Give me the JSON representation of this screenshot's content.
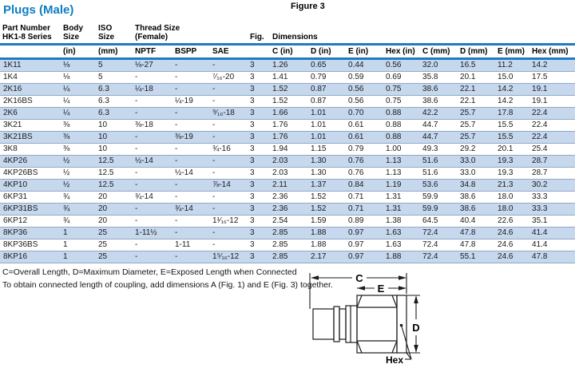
{
  "page": {
    "title": "Plugs (Male)",
    "figure_label": "Figure 3"
  },
  "colors": {
    "title_blue": "#0d7dc4",
    "rule_blue": "#1d7bc4",
    "row_stripe": "#c5d8ee",
    "row_separator": "#93a9c1"
  },
  "table": {
    "group_headers": [
      {
        "label": "Part Number\nHK1-8 Series"
      },
      {
        "label": "Body\nSize"
      },
      {
        "label": "ISO\nSize"
      },
      {
        "label": "Thread Size\n(Female)"
      },
      {
        "label": "Fig."
      },
      {
        "label": "Dimensions"
      }
    ],
    "sub_headers": [
      "",
      "(in)",
      "(mm)",
      "NPTF",
      "BSPP",
      "SAE",
      "",
      "C (in)",
      "D (in)",
      "E (in)",
      "Hex (in)",
      "C (mm)",
      "D (mm)",
      "E (mm)",
      "Hex (mm)"
    ],
    "rows": [
      [
        "1K11",
        "⅛",
        "5",
        "⅛-27",
        "-",
        "-",
        "3",
        "1.26",
        "0.65",
        "0.44",
        "0.56",
        "32.0",
        "16.5",
        "11.2",
        "14.2"
      ],
      [
        "1K4",
        "⅛",
        "5",
        "-",
        "-",
        "⁷⁄₁₆-20",
        "3",
        "1.41",
        "0.79",
        "0.59",
        "0.69",
        "35.8",
        "20.1",
        "15.0",
        "17.5"
      ],
      [
        "2K16",
        "¼",
        "6.3",
        "¼-18",
        "-",
        "-",
        "3",
        "1.52",
        "0.87",
        "0.56",
        "0.75",
        "38.6",
        "22.1",
        "14.2",
        "19.1"
      ],
      [
        "2K16BS",
        "¼",
        "6.3",
        "-",
        "¼-19",
        "-",
        "3",
        "1.52",
        "0.87",
        "0.56",
        "0.75",
        "38.6",
        "22.1",
        "14.2",
        "19.1"
      ],
      [
        "2K6",
        "¼",
        "6.3",
        "-",
        "-",
        "⁹⁄₁₆-18",
        "3",
        "1.66",
        "1.01",
        "0.70",
        "0.88",
        "42.2",
        "25.7",
        "17.8",
        "22.4"
      ],
      [
        "3K21",
        "⅜",
        "10",
        "⅜-18",
        "-",
        "-",
        "3",
        "1.76",
        "1.01",
        "0.61",
        "0.88",
        "44.7",
        "25.7",
        "15.5",
        "22.4"
      ],
      [
        "3K21BS",
        "⅜",
        "10",
        "-",
        "⅜-19",
        "-",
        "3",
        "1.76",
        "1.01",
        "0.61",
        "0.88",
        "44.7",
        "25.7",
        "15.5",
        "22.4"
      ],
      [
        "3K8",
        "⅜",
        "10",
        "-",
        "-",
        "¾-16",
        "3",
        "1.94",
        "1.15",
        "0.79",
        "1.00",
        "49.3",
        "29.2",
        "20.1",
        "25.4"
      ],
      [
        "4KP26",
        "½",
        "12.5",
        "½-14",
        "-",
        "-",
        "3",
        "2.03",
        "1.30",
        "0.76",
        "1.13",
        "51.6",
        "33.0",
        "19.3",
        "28.7"
      ],
      [
        "4KP26BS",
        "½",
        "12.5",
        "-",
        "½-14",
        "-",
        "3",
        "2.03",
        "1.30",
        "0.76",
        "1.13",
        "51.6",
        "33.0",
        "19.3",
        "28.7"
      ],
      [
        "4KP10",
        "½",
        "12.5",
        "-",
        "-",
        "⅞-14",
        "3",
        "2.11",
        "1.37",
        "0.84",
        "1.19",
        "53.6",
        "34.8",
        "21.3",
        "30.2"
      ],
      [
        "6KP31",
        "¾",
        "20",
        "¾-14",
        "-",
        "-",
        "3",
        "2.36",
        "1.52",
        "0.71",
        "1.31",
        "59.9",
        "38.6",
        "18.0",
        "33.3"
      ],
      [
        "6KP31BS",
        "¾",
        "20",
        "-",
        "¾-14",
        "-",
        "3",
        "2.36",
        "1.52",
        "0.71",
        "1.31",
        "59.9",
        "38.6",
        "18.0",
        "33.3"
      ],
      [
        "6KP12",
        "¾",
        "20",
        "-",
        "-",
        "1¹⁄₁₆-12",
        "3",
        "2.54",
        "1.59",
        "0.89",
        "1.38",
        "64.5",
        "40.4",
        "22.6",
        "35.1"
      ],
      [
        "8KP36",
        "1",
        "25",
        "1-11½",
        "-",
        "-",
        "3",
        "2.85",
        "1.88",
        "0.97",
        "1.63",
        "72.4",
        "47.8",
        "24.6",
        "41.4"
      ],
      [
        "8KP36BS",
        "1",
        "25",
        "-",
        "1-11",
        "-",
        "3",
        "2.85",
        "1.88",
        "0.97",
        "1.63",
        "72.4",
        "47.8",
        "24.6",
        "41.4"
      ],
      [
        "8KP16",
        "1",
        "25",
        "-",
        "-",
        "1⁵⁄₁₆-12",
        "3",
        "2.85",
        "2.17",
        "0.97",
        "1.88",
        "72.4",
        "55.1",
        "24.6",
        "47.8"
      ]
    ]
  },
  "notes": {
    "line1": "C=Overall Length, D=Maximum Diameter, E=Exposed Length when Connected",
    "line2": "To obtain connected length of coupling, add dimensions A (Fig. 1) and E (Fig. 3) together."
  },
  "diagram": {
    "labels": {
      "c": "C",
      "e": "E",
      "d": "D",
      "hex": "Hex"
    }
  }
}
